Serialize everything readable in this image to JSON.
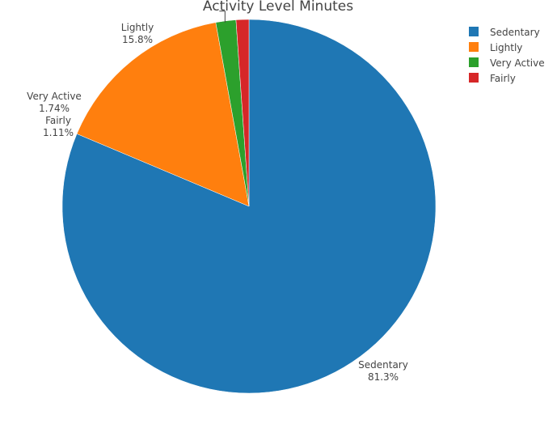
{
  "chart_data": {
    "type": "pie",
    "title": "Activity Level Minutes",
    "categories": [
      "Sedentary",
      "Lightly",
      "Very Active",
      "Fairly"
    ],
    "values": [
      81.3,
      15.8,
      1.74,
      1.11
    ],
    "value_labels": [
      "81.3%",
      "15.8%",
      "1.74%",
      "1.11%"
    ],
    "colors": [
      "#1f77b4",
      "#ff7f0e",
      "#2ca02c",
      "#d62728"
    ],
    "legend": {
      "placement": "top-right",
      "entries": [
        "Sedentary",
        "Lightly",
        "Very Active",
        "Fairly"
      ]
    },
    "sort": "clockwise from top"
  }
}
